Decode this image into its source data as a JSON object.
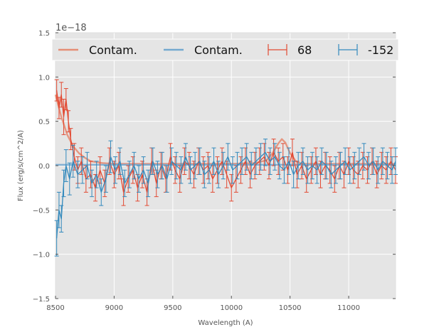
{
  "chart_data": {
    "type": "line",
    "title": "",
    "xlabel": "Wavelength (A)",
    "ylabel": "Flux (erg/s/cm^2/A)",
    "y_offset_label": "1e−18",
    "xlim": [
      8500,
      11400
    ],
    "ylim": [
      -1.5,
      1.5
    ],
    "xticks": [
      8500,
      9000,
      9500,
      10000,
      10500,
      11000
    ],
    "xtick_labels": [
      "8500",
      "9000",
      "9500",
      "10000",
      "10500",
      "11000"
    ],
    "yticks": [
      -1.5,
      -1.0,
      -0.5,
      0.0,
      0.5,
      1.0,
      1.5
    ],
    "ytick_labels": [
      "−1.5",
      "−1.0",
      "−0.5",
      "0.0",
      "0.5",
      "1.0",
      "1.5"
    ],
    "grid": true,
    "legend_position": "top",
    "legend": [
      {
        "label": "Contam.",
        "kind": "line",
        "color": "#E58E75"
      },
      {
        "label": "Contam.",
        "kind": "line",
        "color": "#74A9CF"
      },
      {
        "label": "68",
        "kind": "errorbar",
        "color": "#E24A33"
      },
      {
        "label": "-152",
        "kind": "errorbar",
        "color": "#348ABD"
      }
    ],
    "series": [
      {
        "name": "Contam.",
        "role": "contamination",
        "color": "#E58E75",
        "x": [
          8500,
          8550,
          8600,
          8650,
          8700,
          8750,
          8800,
          8900,
          9000,
          9200,
          9500,
          9800,
          10000,
          10200,
          10300,
          10350,
          10400,
          10430,
          10460,
          10500,
          10550,
          10600,
          10700,
          11000,
          11400
        ],
        "y": [
          0.8,
          0.55,
          0.35,
          0.22,
          0.14,
          0.09,
          0.05,
          0.03,
          0.02,
          0.02,
          0.02,
          0.02,
          0.02,
          0.03,
          0.06,
          0.14,
          0.25,
          0.3,
          0.26,
          0.14,
          0.05,
          0.02,
          0.02,
          0.02,
          0.02
        ]
      },
      {
        "name": "Contam.",
        "role": "contamination",
        "color": "#74A9CF",
        "x": [
          8500,
          9000,
          9500,
          10000,
          10500,
          11000,
          11400
        ],
        "y": [
          0.01,
          0.01,
          0.01,
          0.01,
          0.01,
          0.01,
          0.01
        ]
      },
      {
        "name": "68",
        "color": "#E24A33",
        "x": [
          8510,
          8530,
          8550,
          8570,
          8590,
          8610,
          8630,
          8660,
          8690,
          8720,
          8760,
          8800,
          8840,
          8880,
          8920,
          8960,
          9000,
          9040,
          9080,
          9120,
          9160,
          9200,
          9240,
          9280,
          9320,
          9360,
          9400,
          9440,
          9480,
          9520,
          9560,
          9600,
          9640,
          9680,
          9720,
          9760,
          9800,
          9840,
          9880,
          9920,
          9960,
          10000,
          10040,
          10080,
          10120,
          10160,
          10200,
          10240,
          10280,
          10320,
          10360,
          10400,
          10440,
          10480,
          10520,
          10560,
          10600,
          10640,
          10680,
          10720,
          10760,
          10800,
          10840,
          10880,
          10920,
          10960,
          11000,
          11040,
          11080,
          11120,
          11160,
          11200,
          11240,
          11280,
          11320,
          11360,
          11400
        ],
        "y": [
          0.85,
          0.65,
          0.8,
          0.55,
          0.75,
          0.5,
          0.3,
          0.1,
          -0.05,
          0.05,
          -0.15,
          -0.1,
          -0.25,
          -0.05,
          -0.2,
          0.05,
          -0.1,
          0.0,
          -0.3,
          -0.15,
          -0.05,
          -0.25,
          -0.1,
          -0.3,
          0.05,
          -0.2,
          0.0,
          -0.15,
          0.1,
          -0.05,
          -0.15,
          0.05,
          0.0,
          -0.1,
          0.05,
          -0.05,
          0.0,
          -0.15,
          -0.05,
          0.05,
          -0.1,
          -0.25,
          -0.15,
          -0.05,
          0.05,
          -0.1,
          0.0,
          0.05,
          0.1,
          0.0,
          0.15,
          0.05,
          0.1,
          -0.05,
          0.15,
          -0.1,
          0.0,
          -0.15,
          -0.05,
          0.05,
          -0.1,
          0.0,
          -0.05,
          -0.15,
          0.0,
          -0.1,
          0.05,
          -0.05,
          -0.1,
          0.0,
          -0.05,
          0.05,
          -0.1,
          0.0,
          -0.05,
          0.05,
          -0.05
        ],
        "yerr": [
          0.12,
          0.12,
          0.14,
          0.2,
          0.12,
          0.12,
          0.12,
          0.15,
          0.15,
          0.15,
          0.15,
          0.15,
          0.15,
          0.15,
          0.15,
          0.15,
          0.15,
          0.15,
          0.15,
          0.15,
          0.15,
          0.15,
          0.15,
          0.15,
          0.15,
          0.15,
          0.15,
          0.15,
          0.15,
          0.15,
          0.15,
          0.15,
          0.15,
          0.15,
          0.15,
          0.15,
          0.15,
          0.15,
          0.15,
          0.15,
          0.15,
          0.15,
          0.15,
          0.15,
          0.15,
          0.15,
          0.15,
          0.15,
          0.15,
          0.15,
          0.15,
          0.15,
          0.15,
          0.15,
          0.15,
          0.15,
          0.15,
          0.15,
          0.15,
          0.15,
          0.15,
          0.15,
          0.15,
          0.15,
          0.15,
          0.15,
          0.15,
          0.15,
          0.15,
          0.15,
          0.15,
          0.15,
          0.15,
          0.15,
          0.15,
          0.15,
          0.15
        ]
      },
      {
        "name": "-152",
        "color": "#348ABD",
        "x": [
          8510,
          8530,
          8550,
          8570,
          8590,
          8620,
          8650,
          8690,
          8730,
          8770,
          8810,
          8850,
          8890,
          8930,
          8970,
          9010,
          9050,
          9090,
          9130,
          9170,
          9210,
          9250,
          9290,
          9330,
          9370,
          9410,
          9450,
          9490,
          9530,
          9570,
          9610,
          9650,
          9690,
          9730,
          9770,
          9810,
          9850,
          9890,
          9930,
          9970,
          10010,
          10050,
          10090,
          10130,
          10170,
          10210,
          10250,
          10290,
          10330,
          10370,
          10410,
          10450,
          10490,
          10530,
          10570,
          10610,
          10650,
          10690,
          10730,
          10770,
          10810,
          10850,
          10890,
          10930,
          10970,
          11010,
          11050,
          11090,
          11130,
          11170,
          11210,
          11250,
          11290,
          11330,
          11370,
          11400
        ],
        "y": [
          -0.82,
          -0.5,
          -0.6,
          -0.2,
          0.0,
          -0.15,
          0.05,
          -0.1,
          -0.05,
          0.0,
          -0.2,
          -0.1,
          -0.3,
          -0.15,
          0.1,
          -0.05,
          0.05,
          -0.2,
          -0.1,
          0.0,
          -0.15,
          -0.05,
          -0.2,
          0.05,
          -0.1,
          0.0,
          -0.15,
          0.05,
          0.0,
          -0.05,
          0.1,
          -0.05,
          0.0,
          0.05,
          -0.1,
          -0.05,
          0.05,
          -0.1,
          0.0,
          0.1,
          -0.05,
          0.0,
          0.05,
          0.1,
          0.0,
          0.05,
          0.1,
          0.15,
          0.05,
          0.1,
          0.0,
          -0.05,
          0.05,
          -0.1,
          0.0,
          0.05,
          -0.05,
          0.0,
          -0.05,
          0.05,
          0.0,
          -0.1,
          -0.05,
          0.0,
          0.05,
          -0.05,
          0.0,
          0.05,
          0.1,
          0.0,
          0.05,
          -0.05,
          0.05,
          0.0,
          -0.05,
          0.05
        ],
        "yerr": [
          0.2,
          0.2,
          0.15,
          0.15,
          0.18,
          0.18,
          0.18,
          0.15,
          0.15,
          0.15,
          0.15,
          0.15,
          0.15,
          0.15,
          0.18,
          0.15,
          0.15,
          0.15,
          0.15,
          0.15,
          0.15,
          0.15,
          0.15,
          0.15,
          0.15,
          0.15,
          0.15,
          0.15,
          0.15,
          0.15,
          0.15,
          0.15,
          0.15,
          0.15,
          0.15,
          0.15,
          0.15,
          0.15,
          0.15,
          0.15,
          0.15,
          0.15,
          0.15,
          0.15,
          0.15,
          0.15,
          0.15,
          0.15,
          0.15,
          0.15,
          0.15,
          0.15,
          0.15,
          0.15,
          0.15,
          0.15,
          0.15,
          0.15,
          0.15,
          0.15,
          0.15,
          0.15,
          0.15,
          0.15,
          0.15,
          0.15,
          0.15,
          0.15,
          0.15,
          0.15,
          0.15,
          0.15,
          0.15,
          0.15,
          0.15,
          0.15
        ]
      }
    ]
  }
}
